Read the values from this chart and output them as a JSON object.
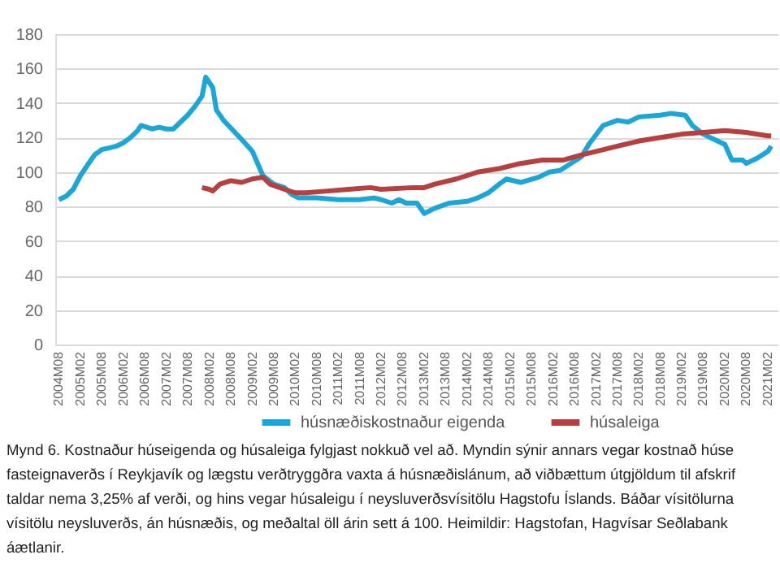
{
  "chart_data": {
    "type": "line",
    "series": [
      {
        "name": "húsnæðiskostnaður eigenda",
        "color": "#1ba6d8",
        "x": [
          "2004-08",
          "2004-10",
          "2004-12",
          "2005-02",
          "2005-04",
          "2005-06",
          "2005-08",
          "2005-10",
          "2005-12",
          "2006-02",
          "2006-04",
          "2006-06",
          "2006-07",
          "2006-10",
          "2006-12",
          "2007-02",
          "2007-04",
          "2007-06",
          "2007-08",
          "2007-10",
          "2007-12",
          "2008-01",
          "2008-03",
          "2008-04",
          "2008-06",
          "2008-11",
          "2009-02",
          "2009-05",
          "2009-08",
          "2009-11",
          "2010-01",
          "2010-03",
          "2010-08",
          "2011-02",
          "2011-08",
          "2011-12",
          "2012-02",
          "2012-05",
          "2012-07",
          "2012-09",
          "2012-12",
          "2013-02",
          "2013-05",
          "2013-09",
          "2014-02",
          "2014-05",
          "2014-08",
          "2014-11",
          "2015-01",
          "2015-05",
          "2015-10",
          "2016-01",
          "2016-04",
          "2016-07",
          "2016-10",
          "2016-12",
          "2017-04",
          "2017-08",
          "2017-11",
          "2018-02",
          "2018-08",
          "2018-11",
          "2019-03",
          "2019-05",
          "2019-08",
          "2019-11",
          "2020-02",
          "2020-04",
          "2020-07",
          "2020-08",
          "2020-11",
          "2021-02",
          "2021-03"
        ],
        "values": [
          84,
          86,
          90,
          98,
          104,
          110,
          113,
          114,
          115,
          117,
          120,
          124,
          127,
          125,
          126,
          125,
          125,
          129,
          133,
          138,
          144,
          155,
          149,
          136,
          130,
          119,
          112,
          98,
          93,
          91,
          87,
          85,
          85,
          84,
          84,
          85,
          84,
          82,
          84,
          82,
          82,
          76,
          79,
          82,
          83,
          85,
          88,
          93,
          96,
          94,
          97,
          100,
          101,
          105,
          109,
          116,
          127,
          130,
          129,
          132,
          133,
          134,
          133,
          127,
          122,
          119,
          116,
          107,
          107,
          105,
          108,
          112,
          115
        ]
      },
      {
        "name": "húsaleiga",
        "color": "#b5403f",
        "x": [
          "2007-12",
          "2008-02",
          "2008-03",
          "2008-05",
          "2008-08",
          "2008-11",
          "2009-02",
          "2009-05",
          "2009-07",
          "2009-11",
          "2010-02",
          "2010-05",
          "2010-11",
          "2011-05",
          "2011-11",
          "2012-02",
          "2012-11",
          "2013-02",
          "2013-05",
          "2013-11",
          "2014-05",
          "2014-11",
          "2015-05",
          "2015-11",
          "2016-05",
          "2016-10",
          "2017-02",
          "2017-08",
          "2018-02",
          "2018-08",
          "2019-02",
          "2019-08",
          "2020-02",
          "2020-08",
          "2021-02",
          "2021-03"
        ],
        "values": [
          91,
          90,
          89,
          93,
          95,
          94,
          96,
          97,
          93,
          90,
          88,
          88,
          89,
          90,
          91,
          90,
          91,
          91,
          93,
          96,
          100,
          102,
          105,
          107,
          107,
          110,
          112,
          115,
          118,
          120,
          122,
          123,
          124,
          123,
          121,
          121
        ]
      }
    ],
    "xlim": [
      "2004-07",
      "2021-05"
    ],
    "xticks": [
      {
        "value": "2004-08",
        "label": "2004M08"
      },
      {
        "value": "2005-02",
        "label": "2005M02"
      },
      {
        "value": "2005-08",
        "label": "2005M08"
      },
      {
        "value": "2006-02",
        "label": "2006M02"
      },
      {
        "value": "2006-08",
        "label": "2006M08"
      },
      {
        "value": "2007-02",
        "label": "2007M02"
      },
      {
        "value": "2007-08",
        "label": "2007M08"
      },
      {
        "value": "2008-02",
        "label": "2008M02"
      },
      {
        "value": "2008-08",
        "label": "2008M08"
      },
      {
        "value": "2009-02",
        "label": "2009M02"
      },
      {
        "value": "2009-08",
        "label": "2009M08"
      },
      {
        "value": "2010-02",
        "label": "2010M02"
      },
      {
        "value": "2010-08",
        "label": "2010M08"
      },
      {
        "value": "2011-02",
        "label": "2011M02"
      },
      {
        "value": "2011-08",
        "label": "2011M08"
      },
      {
        "value": "2012-02",
        "label": "2012M02"
      },
      {
        "value": "2012-08",
        "label": "2012M08"
      },
      {
        "value": "2013-02",
        "label": "2013M02"
      },
      {
        "value": "2013-08",
        "label": "2013M08"
      },
      {
        "value": "2014-02",
        "label": "2014M02"
      },
      {
        "value": "2014-08",
        "label": "2014M08"
      },
      {
        "value": "2015-02",
        "label": "2015M02"
      },
      {
        "value": "2015-08",
        "label": "2015M08"
      },
      {
        "value": "2016-02",
        "label": "2016M02"
      },
      {
        "value": "2016-08",
        "label": "2016M08"
      },
      {
        "value": "2017-02",
        "label": "2017M02"
      },
      {
        "value": "2017-08",
        "label": "2017M08"
      },
      {
        "value": "2018-02",
        "label": "2018M02"
      },
      {
        "value": "2018-08",
        "label": "2018M08"
      },
      {
        "value": "2019-02",
        "label": "2019M02"
      },
      {
        "value": "2019-08",
        "label": "2019M08"
      },
      {
        "value": "2020-02",
        "label": "2020M02"
      },
      {
        "value": "2020-08",
        "label": "2020M08"
      },
      {
        "value": "2021-02",
        "label": "2021M02"
      }
    ],
    "ylim": [
      0,
      180
    ],
    "yticks": [
      0,
      20,
      40,
      60,
      80,
      100,
      120,
      140,
      160,
      180
    ],
    "grid": "y",
    "legend": "bottom",
    "marker": "none",
    "line_style": "solid",
    "annotations": [
      "Mynd 6. Kostnaður húseigenda og húsaleiga fylgjast nokkuð vel að. Myndin sýnir annars vegar kostnað húse",
      "fasteignaverðs í Reykjavík og lægstu verðtryggðra vaxta á húsnæðislánum, að viðbættum útgjöldum til afskrif",
      "taldar nema 3,25% af verði, og hins vegar húsaleigu í neysluverðsvísitölu Hagstofu Íslands. Báðar vísitölurna",
      "vísitölu neysluverðs, án húsnæðis, og meðaltal öll árin sett á 100. Heimildir: Hagstofan, Hagvísar Seðlabank",
      "áætlanir."
    ]
  }
}
